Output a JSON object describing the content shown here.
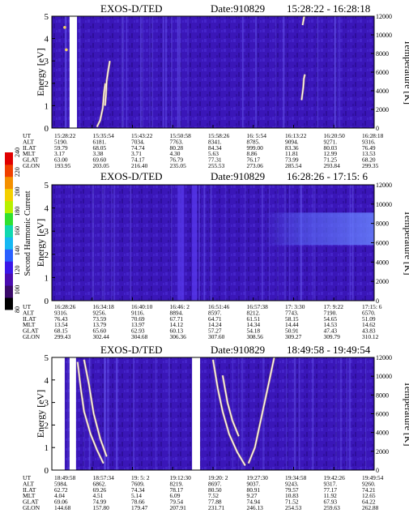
{
  "colors": {
    "background": "#3a16b8",
    "noise_a": "#4a2ad2",
    "noise_b": "#2a0c94",
    "stripe": "#6a5cf0",
    "trace": "#ffffff",
    "trace_accent": "#f4d060"
  },
  "colorbar": {
    "label": "Second Harmonic Current",
    "ticks": [
      "80",
      "100",
      "120",
      "140",
      "160",
      "180",
      "200",
      "220",
      "240"
    ],
    "range": [
      80,
      240
    ],
    "colors": [
      "#000000",
      "#3a0a6a",
      "#4a0cb0",
      "#3a16e8",
      "#2a60ff",
      "#16b8f2",
      "#10d8b0",
      "#30e030",
      "#b8f000",
      "#f4d000",
      "#f49000",
      "#f04000",
      "#e00000"
    ]
  },
  "chart_data": [
    {
      "type": "heatmap",
      "title": "EXOS-D/TED",
      "date": "Date:910829",
      "time_range": "15:28:22 - 16:28:18",
      "ylabel": "Energy [eV]",
      "y2label": "Temperature [K]",
      "ylim": [
        0,
        5
      ],
      "y2lim": [
        0,
        12000
      ],
      "y_ticks": [
        "0",
        "1",
        "2",
        "3",
        "4",
        "5"
      ],
      "y2_ticks": [
        "0",
        "2000",
        "4000",
        "6000",
        "8000",
        "10000",
        "12000"
      ],
      "grid": false,
      "legend": "none",
      "row_labels": [
        "UT",
        "ALT",
        "ILAT",
        "MLT",
        "GLAT",
        "GLON"
      ],
      "columns": [
        [
          "15:28:22",
          "5190.",
          "59.79",
          "3.17",
          "63.00",
          "193.95"
        ],
        [
          "15:35:54",
          "6181.",
          "68.05",
          "3.38",
          "69.60",
          "203.05"
        ],
        [
          "15:43:22",
          "7034.",
          "74.74",
          "3.71",
          "74.17",
          "216.40"
        ],
        [
          "15:50:58",
          "7763.",
          "80.28",
          "4.30",
          "76.79",
          "235.05"
        ],
        [
          "15:58:26",
          "8341.",
          "84.34",
          "5.63",
          "77.31",
          "255.53"
        ],
        [
          "16: 5:54",
          "8785.",
          "999.00",
          "8.86",
          "76.17",
          "273.06"
        ],
        [
          "16:13:22",
          "9094.",
          "83.36",
          "11.81",
          "73.99",
          "285.54"
        ],
        [
          "16:20:50",
          "9271.",
          "80.03",
          "12.99",
          "71.25",
          "293.84"
        ],
        [
          "16:28:18",
          "9316.",
          "76.49",
          "13.53",
          "68.20",
          "299.35"
        ]
      ],
      "features": [
        {
          "kind": "gap",
          "x": [
            0.055,
            0.078
          ],
          "y": [
            0,
            5
          ]
        },
        {
          "kind": "spot",
          "x": 0.04,
          "y": 4.5,
          "color": "#f4d060"
        },
        {
          "kind": "spot",
          "x": 0.045,
          "y": 3.5,
          "color": "#f4d060"
        },
        {
          "kind": "trace",
          "points": [
            [
              0.14,
              0.05
            ],
            [
              0.15,
              0.35
            ],
            [
              0.158,
              0.9
            ],
            [
              0.162,
              1.6
            ],
            [
              0.166,
              2.0
            ]
          ]
        },
        {
          "kind": "trace",
          "points": [
            [
              0.165,
              1.0
            ],
            [
              0.168,
              1.5
            ],
            [
              0.17,
              2.1
            ],
            [
              0.174,
              2.5
            ],
            [
              0.18,
              3.0
            ]
          ]
        },
        {
          "kind": "trace",
          "points": [
            [
              0.775,
              1.25
            ],
            [
              0.78,
              1.8
            ],
            [
              0.782,
              2.2
            ],
            [
              0.785,
              2.4
            ]
          ]
        },
        {
          "kind": "trace",
          "points": [
            [
              0.778,
              4.6
            ],
            [
              0.783,
              5.0
            ]
          ]
        }
      ]
    },
    {
      "type": "heatmap",
      "title": "EXOS-D/TED",
      "date": "Date:910829",
      "time_range": "16:28:26 - 17:15: 6",
      "ylabel": "Energy [eV]",
      "y2label": "Temperature [K]",
      "ylim": [
        0,
        5
      ],
      "y2lim": [
        0,
        12000
      ],
      "y_ticks": [
        "0",
        "1",
        "2",
        "3",
        "4",
        "5"
      ],
      "y2_ticks": [
        "0",
        "2000",
        "4000",
        "6000",
        "8000",
        "10000",
        "12000"
      ],
      "grid": false,
      "legend": "none",
      "row_labels": [
        "UT",
        "ALT",
        "ILAT",
        "MLT",
        "GLAT",
        "GLON"
      ],
      "columns": [
        [
          "16:28:26",
          "9316.",
          "76.43",
          "13.54",
          "68.15",
          "299.43"
        ],
        [
          "16:34:18",
          "9256.",
          "73.59",
          "13.79",
          "65.60",
          "302.44"
        ],
        [
          "16:40:10",
          "9116.",
          "70.69",
          "13.97",
          "62.93",
          "304.68"
        ],
        [
          "16:46: 2",
          "8894.",
          "67.71",
          "14.12",
          "60.13",
          "306.36"
        ],
        [
          "16:51:46",
          "8597.",
          "64.71",
          "14.24",
          "57.27",
          "307.60"
        ],
        [
          "16:57:38",
          "8212.",
          "61.51",
          "14.34",
          "54.18",
          "308.56"
        ],
        [
          "17: 3:30",
          "7743.",
          "58.15",
          "14.44",
          "50.91",
          "309.27"
        ],
        [
          "17: 9:22",
          "7190.",
          "54.65",
          "14.53",
          "47.43",
          "309.79"
        ],
        [
          "17:15: 6",
          "6570.",
          "51.09",
          "14.62",
          "43.83",
          "310.12"
        ]
      ],
      "features": [
        {
          "kind": "band",
          "x": [
            0.39,
            0.41
          ],
          "y": [
            0,
            5
          ]
        },
        {
          "kind": "band",
          "x": [
            0.435,
            0.45
          ],
          "y": [
            0,
            5
          ]
        },
        {
          "kind": "glow",
          "x": [
            0.66,
            1.0
          ],
          "y": [
            2.4,
            3.8
          ]
        }
      ]
    },
    {
      "type": "heatmap",
      "title": "EXOS-D/TED",
      "date": "Date:910829",
      "time_range": "18:49:58 - 19:49:54",
      "ylabel": "Energy [eV]",
      "y2label": "Temperature [K]",
      "ylim": [
        0,
        5
      ],
      "y2lim": [
        0,
        12000
      ],
      "y_ticks": [
        "0",
        "1",
        "2",
        "3",
        "4",
        "5"
      ],
      "y2_ticks": [
        "0",
        "2000",
        "4000",
        "6000",
        "8000",
        "10000",
        "12000"
      ],
      "grid": false,
      "legend": "none",
      "row_labels": [
        "UT",
        "ALT",
        "ILAT",
        "MLT",
        "GLAT",
        "GLON"
      ],
      "columns": [
        [
          "18:49:58",
          "5984.",
          "62.72",
          "4.04",
          "69.06",
          "144.68"
        ],
        [
          "18:57:34",
          "6862.",
          "69.26",
          "4.51",
          "74.99",
          "157.80"
        ],
        [
          "19: 5: 2",
          "7609.",
          "74.34",
          "5.14",
          "78.66",
          "179.47"
        ],
        [
          "19:12:30",
          "8219.",
          "78.17",
          "6.09",
          "79.54",
          "207.91"
        ],
        [
          "19:20: 2",
          "8697.",
          "80.50",
          "7.52",
          "77.88",
          "231.71"
        ],
        [
          "19:27:30",
          "9037.",
          "80.91",
          "9.27",
          "74.94",
          "246.13"
        ],
        [
          "19:34:58",
          "9243.",
          "79.57",
          "10.83",
          "71.52",
          "254.53"
        ],
        [
          "19:42:26",
          "9317.",
          "77.17",
          "11.92",
          "67.93",
          "259.63"
        ],
        [
          "19:49:54",
          "9260.",
          "74.21",
          "12.65",
          "64.22",
          "262.88"
        ]
      ],
      "features": [
        {
          "kind": "gap",
          "x": [
            0.0,
            0.04
          ],
          "y": [
            0,
            5
          ]
        },
        {
          "kind": "gap",
          "x": [
            0.055,
            0.075
          ],
          "y": [
            0,
            5
          ]
        },
        {
          "kind": "gap",
          "x": [
            0.435,
            0.46
          ],
          "y": [
            0,
            5
          ]
        },
        {
          "kind": "trace",
          "points": [
            [
              0.08,
              4.8
            ],
            [
              0.09,
              3.6
            ],
            [
              0.1,
              2.6
            ],
            [
              0.12,
              1.6
            ],
            [
              0.14,
              0.9
            ],
            [
              0.16,
              0.3
            ]
          ]
        },
        {
          "kind": "trace",
          "points": [
            [
              0.1,
              4.9
            ],
            [
              0.115,
              3.8
            ],
            [
              0.13,
              2.5
            ],
            [
              0.15,
              1.4
            ],
            [
              0.17,
              0.6
            ]
          ]
        },
        {
          "kind": "trace",
          "points": [
            [
              0.5,
              4.9
            ],
            [
              0.515,
              3.6
            ],
            [
              0.53,
              2.6
            ],
            [
              0.55,
              1.6
            ],
            [
              0.575,
              0.8
            ],
            [
              0.6,
              0.2
            ]
          ]
        },
        {
          "kind": "trace",
          "points": [
            [
              0.61,
              0.3
            ],
            [
              0.63,
              1.0
            ],
            [
              0.645,
              2.0
            ],
            [
              0.66,
              3.0
            ],
            [
              0.675,
              4.0
            ],
            [
              0.69,
              5.0
            ]
          ]
        },
        {
          "kind": "trace",
          "points": [
            [
              0.53,
              4.2
            ],
            [
              0.545,
              3.0
            ],
            [
              0.56,
              2.2
            ],
            [
              0.58,
              1.5
            ]
          ]
        }
      ]
    }
  ]
}
